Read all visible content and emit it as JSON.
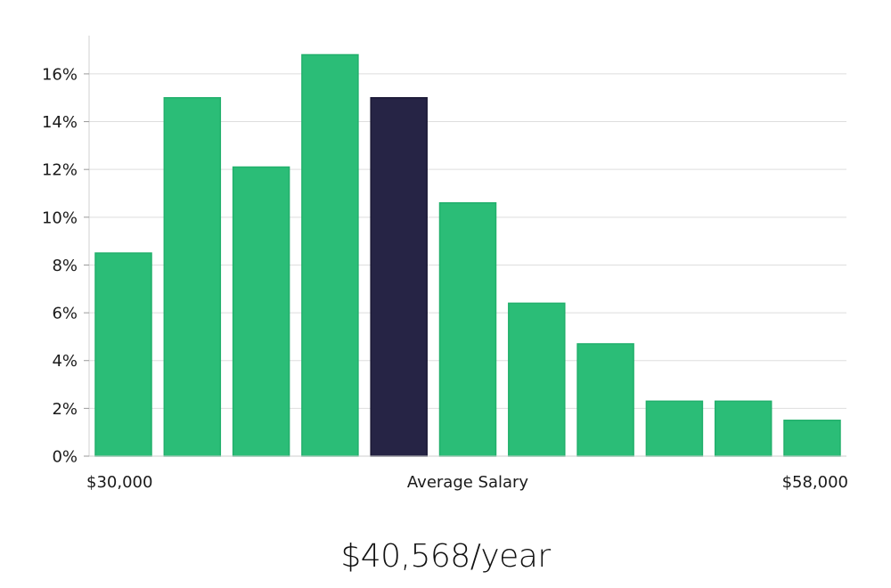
{
  "chart_data": {
    "type": "bar",
    "categories": [
      "1",
      "2",
      "3",
      "4",
      "5",
      "6",
      "7",
      "8",
      "9",
      "10",
      "11"
    ],
    "values": [
      8.5,
      15.0,
      12.1,
      16.8,
      15.0,
      10.6,
      6.4,
      4.7,
      2.3,
      2.3,
      1.5
    ],
    "highlight_index": 4,
    "ylim": [
      0,
      17.6
    ],
    "yticks": [
      0,
      2,
      4,
      6,
      8,
      10,
      12,
      14,
      16
    ],
    "ytick_format": "%",
    "x_labels": {
      "left": "$30,000",
      "center": "Average Salary",
      "right": "$58,000"
    },
    "grid": true,
    "colors": {
      "bar": "#2bbd77",
      "bar_edge": "#22b06c",
      "highlight": "#262445",
      "grid": "#dedede",
      "axis": "#d0d0d0"
    }
  },
  "headline": {
    "salary": "$40,568/year"
  }
}
